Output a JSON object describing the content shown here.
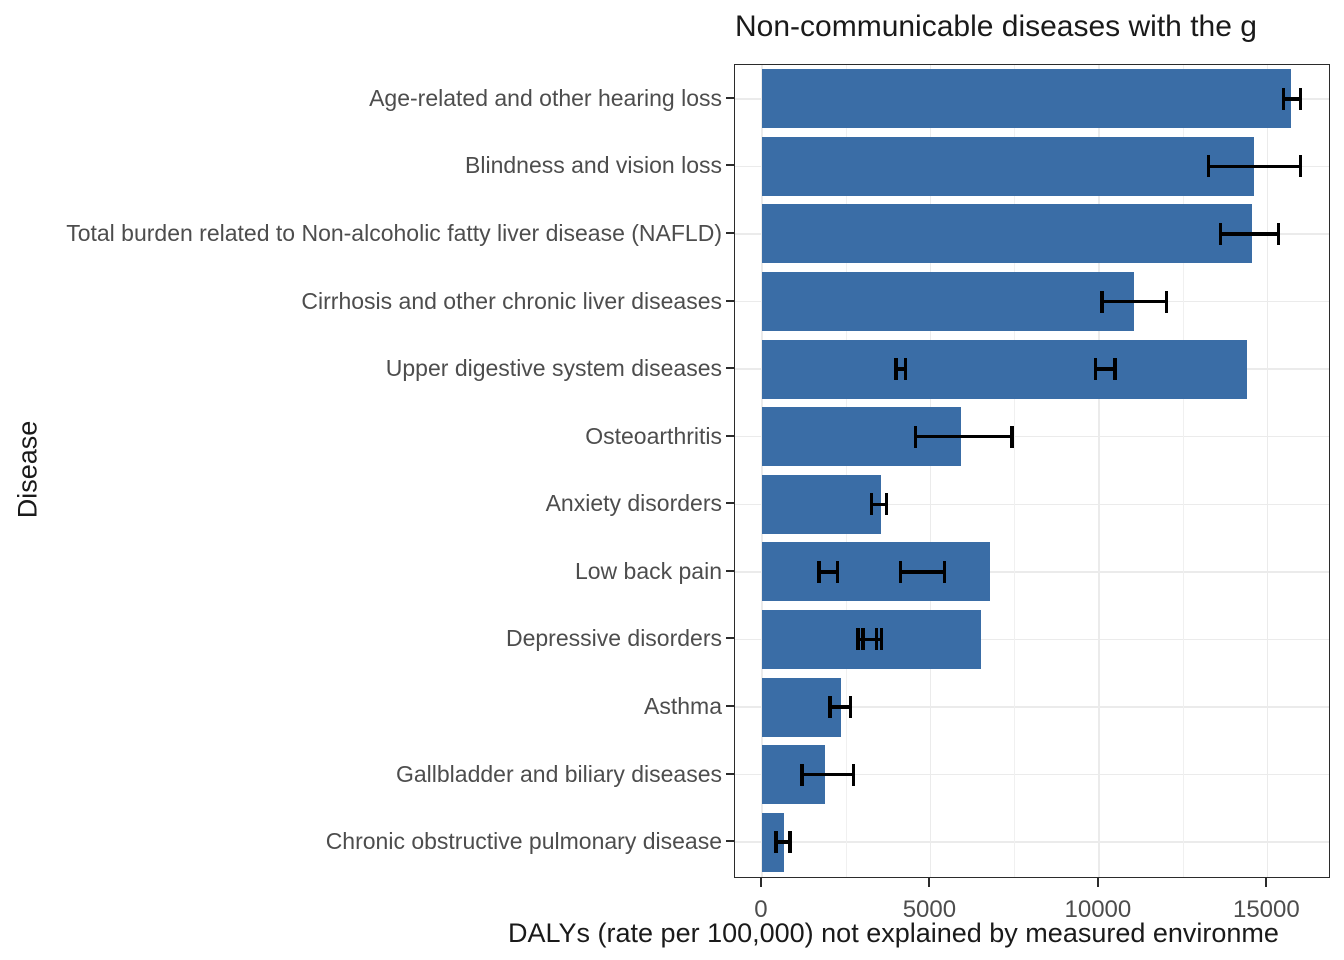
{
  "title": "Non-communicable diseases with the g",
  "colors": {
    "bar": "#3a6da6",
    "error_bar": "#000000",
    "grid_major": "#ebebeb",
    "grid_minor": "#f0f0f0",
    "panel_border": "#2b2b2b",
    "axis_text": "#4d4d4d",
    "title_text": "#1a1a1a"
  },
  "chart_data": {
    "type": "bar",
    "orientation": "horizontal",
    "title": "Non-communicable diseases with the g",
    "xlabel": "DALYs (rate per 100,000) not explained by measured environme",
    "ylabel": "Disease",
    "xlim": [
      -800,
      16800
    ],
    "x_major_ticks": [
      0,
      5000,
      10000,
      15000
    ],
    "x_tick_labels": [
      "0",
      "5000",
      "10000",
      "15000"
    ],
    "x_minor_gridlines": [
      2500,
      7500,
      12500
    ],
    "grid": "on",
    "legend": "none",
    "categories": [
      "Age-related and other hearing loss",
      "Blindness and vision loss",
      "Total burden related to Non-alcoholic fatty liver disease (NAFLD)",
      "Cirrhosis and other chronic liver diseases",
      "Upper digestive system diseases",
      "Osteoarthritis",
      "Anxiety disorders",
      "Low back pain",
      "Depressive disorders",
      "Asthma",
      "Gallbladder and biliary diseases",
      "Chronic obstructive pulmonary disease"
    ],
    "values": [
      15700,
      14600,
      14540,
      11040,
      14400,
      5910,
      3520,
      6780,
      6490,
      2340,
      1880,
      660
    ],
    "error_bars": [
      [
        [
          15480,
          15980
        ]
      ],
      [
        [
          13260,
          15980
        ]
      ],
      [
        [
          13610,
          15330
        ]
      ],
      [
        [
          10085,
          12010
        ]
      ],
      [
        [
          3985,
          4265
        ],
        [
          9905,
          10480
        ]
      ],
      [
        [
          4560,
          7420
        ]
      ],
      [
        [
          3245,
          3690
        ]
      ],
      [
        [
          1695,
          2240
        ],
        [
          4105,
          5415
        ]
      ],
      [
        [
          2850,
          3395
        ],
        [
          3000,
          3545
        ]
      ],
      [
        [
          2025,
          2625
        ]
      ],
      [
        [
          1185,
          2715
        ]
      ],
      [
        [
          412,
          838
        ]
      ]
    ]
  }
}
